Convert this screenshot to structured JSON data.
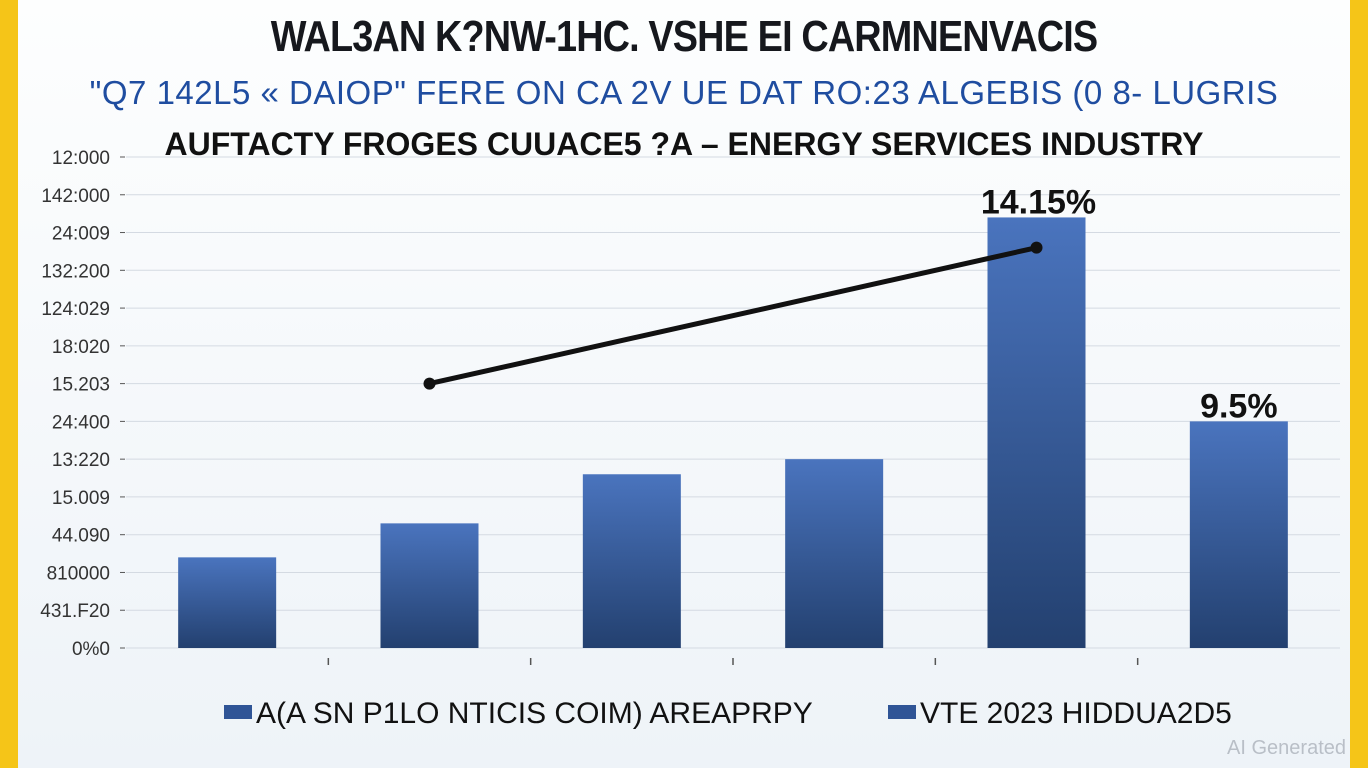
{
  "titles": {
    "main": "WAL3AN K?NW-1HC. VSHE EI CARMNENVACIS",
    "sub": "\"Q7 142L5 « DAIOP\" FERE ON CA 2V UE DAT RO:23 ALGEBIS (0 8- LUGRIS",
    "third": "AUFTACTY FROGES CUUACE5 ?A – ENERGY SERVICES INDUSTRY"
  },
  "watermark": "AI Generated",
  "chart_data": {
    "type": "bar",
    "y_tick_labels": [
      "12:000",
      "142:000",
      "24:009",
      "132:200",
      "124:029",
      "18:020",
      "15.203",
      "24:400",
      "13:220",
      "15.009",
      "44.090",
      "810000",
      "431.F20",
      "0%0"
    ],
    "categories": [
      "",
      "",
      "",
      "",
      "",
      ""
    ],
    "series": [
      {
        "values": [
          2.4,
          3.3,
          4.6,
          5.0,
          11.4,
          6.0
        ],
        "color": "#2f5496"
      },
      {
        "type": "line",
        "points": [
          [
            1,
            7.0
          ],
          [
            4,
            10.6
          ]
        ],
        "color": "#111111"
      }
    ],
    "data_labels": [
      {
        "bar_index": 4,
        "text": "14.15%"
      },
      {
        "bar_index": 5,
        "text": "9.5%"
      }
    ],
    "ylim": [
      0,
      13
    ],
    "grid": true,
    "legend": {
      "position": "bottom",
      "entries": [
        {
          "label": "A(A SN P1LO NTICIS COIM) AREAPRPY",
          "color": "#2f5496"
        },
        {
          "label": "VTE 2023 HIDDUA2D5",
          "color": "#2f5496"
        }
      ]
    }
  }
}
